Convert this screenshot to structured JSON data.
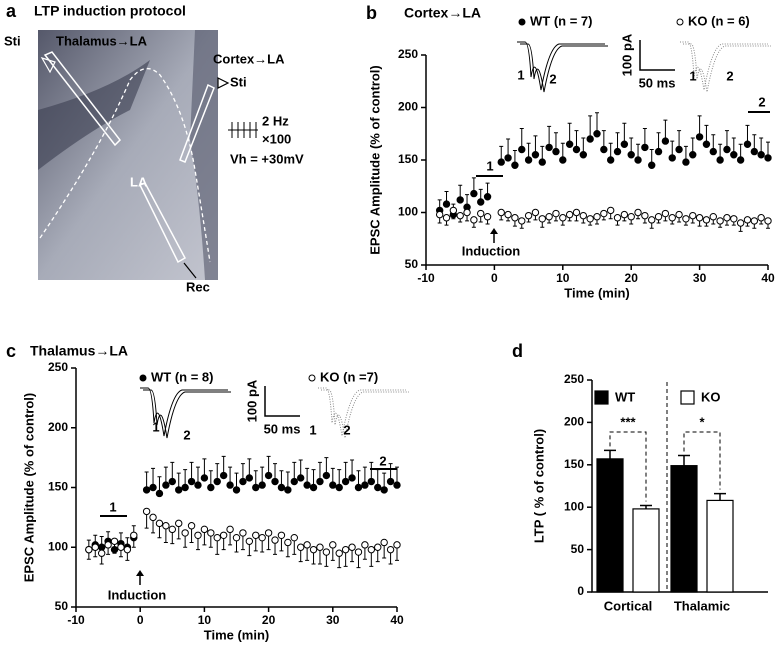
{
  "figure": {
    "panel_labels": [
      "a",
      "b",
      "c",
      "d"
    ],
    "panel_a": {
      "title": "LTP induction protocol",
      "sti_left": "Sti",
      "thalamus": "Thalamus→LA",
      "cortex": "Cortex→LA",
      "sti_right": "Sti",
      "frequency": "2 Hz",
      "repeats": "×100",
      "holding": "Vh = +30mV",
      "region": "LA",
      "recording": "Rec"
    }
  },
  "chart_data": [
    {
      "type": "scatter",
      "title": "Cortex→LA",
      "x_label": "Time (min)",
      "y_label": "EPSC Amplitude (% of control)",
      "xlim": [
        -10,
        40
      ],
      "xticks": [
        -10,
        0,
        10,
        20,
        30,
        40
      ],
      "ylim": [
        50,
        250
      ],
      "yticks": [
        50,
        100,
        150,
        200,
        250
      ],
      "x": [
        -8,
        -7,
        -6,
        -5,
        -4,
        -3,
        -2,
        -1,
        1,
        2,
        3,
        4,
        5,
        6,
        7,
        8,
        9,
        10,
        11,
        12,
        13,
        14,
        15,
        16,
        17,
        18,
        19,
        20,
        21,
        22,
        23,
        24,
        25,
        26,
        27,
        28,
        29,
        30,
        31,
        32,
        33,
        34,
        35,
        36,
        37,
        38,
        39,
        40
      ],
      "series": [
        {
          "name": "WT (n = 7)",
          "color": "#000000",
          "fill": "#000000",
          "error_side": "up",
          "values": [
            102,
            108,
            98,
            112,
            105,
            118,
            110,
            115,
            148,
            152,
            145,
            160,
            150,
            155,
            148,
            162,
            158,
            150,
            165,
            160,
            155,
            170,
            175,
            160,
            150,
            158,
            165,
            155,
            150,
            162,
            145,
            158,
            168,
            152,
            160,
            148,
            155,
            172,
            165,
            158,
            150,
            160,
            155,
            150,
            165,
            158,
            155,
            152
          ],
          "errors": [
            10,
            12,
            10,
            14,
            12,
            15,
            12,
            13,
            15,
            18,
            14,
            20,
            16,
            18,
            15,
            20,
            18,
            16,
            20,
            18,
            16,
            22,
            20,
            18,
            16,
            18,
            20,
            16,
            15,
            18,
            15,
            18,
            20,
            16,
            18,
            15,
            16,
            20,
            18,
            16,
            15,
            18,
            16,
            15,
            18,
            16,
            16,
            15
          ]
        },
        {
          "name": "KO (n = 6)",
          "color": "#000000",
          "fill": "#ffffff",
          "error_side": "down",
          "values": [
            98,
            95,
            102,
            97,
            100,
            93,
            99,
            96,
            100,
            98,
            95,
            92,
            97,
            100,
            94,
            96,
            99,
            95,
            98,
            100,
            97,
            94,
            96,
            99,
            102,
            95,
            98,
            96,
            100,
            97,
            93,
            96,
            99,
            95,
            98,
            94,
            97,
            95,
            93,
            96,
            92,
            95,
            94,
            90,
            93,
            92,
            95,
            92
          ],
          "errors": [
            8,
            7,
            8,
            6,
            8,
            7,
            8,
            7,
            7,
            6,
            8,
            7,
            6,
            7,
            8,
            6,
            7,
            7,
            6,
            8,
            7,
            6,
            7,
            6,
            8,
            7,
            6,
            7,
            6,
            7,
            8,
            6,
            7,
            6,
            7,
            6,
            7,
            8,
            6,
            7,
            6,
            7,
            6,
            8,
            6,
            7,
            6,
            7
          ]
        }
      ],
      "inset": {
        "y_scale": "100 pA",
        "x_scale": "50 ms",
        "wt_labels": [
          "1",
          "2"
        ],
        "ko_labels": [
          "1",
          "2"
        ]
      },
      "annotations": [
        "1",
        "2",
        "Induction"
      ]
    },
    {
      "type": "scatter",
      "title": "Thalamus→LA",
      "x_label": "Time (min)",
      "y_label": "EPSC Amplitude (% of control)",
      "xlim": [
        -10,
        40
      ],
      "xticks": [
        -10,
        0,
        10,
        20,
        30,
        40
      ],
      "ylim": [
        50,
        250
      ],
      "yticks": [
        50,
        100,
        150,
        200,
        250
      ],
      "x": [
        -8,
        -7,
        -6,
        -5,
        -4,
        -3,
        -2,
        -1,
        1,
        2,
        3,
        4,
        5,
        6,
        7,
        8,
        9,
        10,
        11,
        12,
        13,
        14,
        15,
        16,
        17,
        18,
        19,
        20,
        21,
        22,
        23,
        24,
        25,
        26,
        27,
        28,
        29,
        30,
        31,
        32,
        33,
        34,
        35,
        36,
        37,
        38,
        39,
        40
      ],
      "series": [
        {
          "name": "WT (n = 8)",
          "color": "#000000",
          "fill": "#000000",
          "error_side": "up",
          "values": [
            98,
            102,
            100,
            105,
            98,
            103,
            100,
            108,
            148,
            150,
            145,
            152,
            155,
            148,
            150,
            155,
            152,
            158,
            150,
            155,
            160,
            152,
            148,
            155,
            158,
            150,
            152,
            160,
            155,
            150,
            148,
            155,
            158,
            152,
            150,
            155,
            160,
            152,
            150,
            155,
            158,
            150,
            152,
            155,
            150,
            148,
            155,
            152
          ],
          "errors": [
            8,
            8,
            9,
            8,
            8,
            9,
            8,
            10,
            15,
            16,
            14,
            15,
            16,
            14,
            15,
            16,
            15,
            16,
            14,
            15,
            16,
            15,
            14,
            15,
            16,
            14,
            15,
            16,
            15,
            14,
            15,
            16,
            15,
            14,
            15,
            16,
            15,
            14,
            15,
            16,
            15,
            14,
            15,
            16,
            15,
            14,
            15,
            15
          ]
        },
        {
          "name": "KO (n =7)",
          "color": "#000000",
          "fill": "#ffffff",
          "error_side": "down",
          "values": [
            98,
            100,
            95,
            102,
            105,
            100,
            98,
            110,
            130,
            125,
            120,
            118,
            115,
            120,
            112,
            118,
            110,
            115,
            112,
            108,
            110,
            115,
            108,
            112,
            105,
            110,
            108,
            112,
            106,
            110,
            104,
            108,
            100,
            102,
            98,
            100,
            96,
            102,
            95,
            98,
            100,
            96,
            102,
            98,
            100,
            104,
            98,
            102
          ],
          "errors": [
            8,
            8,
            9,
            8,
            10,
            8,
            9,
            10,
            14,
            13,
            12,
            14,
            12,
            13,
            12,
            14,
            12,
            13,
            12,
            14,
            12,
            13,
            12,
            14,
            12,
            13,
            12,
            14,
            12,
            13,
            12,
            14,
            12,
            13,
            12,
            14,
            12,
            13,
            12,
            14,
            12,
            13,
            12,
            14,
            12,
            13,
            12,
            13
          ]
        }
      ],
      "inset": {
        "y_scale": "100 pA",
        "x_scale": "50 ms",
        "wt_labels": [
          "1",
          "2"
        ],
        "ko_labels": [
          "1",
          "2"
        ]
      },
      "annotations": [
        "1",
        "2",
        "Induction"
      ]
    },
    {
      "type": "bar",
      "y_label": "LTP  ( % of control)",
      "categories": [
        "Cortical",
        "Thalamic"
      ],
      "ylim": [
        0,
        250
      ],
      "yticks": [
        0,
        50,
        100,
        150,
        200,
        250
      ],
      "series": [
        {
          "name": "WT",
          "color": "#000000",
          "fill": "#000000",
          "values": [
            157,
            149
          ],
          "errors": [
            10,
            12
          ]
        },
        {
          "name": "KO",
          "color": "#000000",
          "fill": "#ffffff",
          "values": [
            98,
            108
          ],
          "errors": [
            4,
            8
          ]
        }
      ],
      "annotations": [
        "***",
        "*"
      ]
    }
  ]
}
